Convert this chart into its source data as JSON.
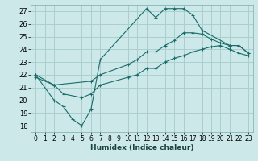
{
  "xlabel": "Humidex (Indice chaleur)",
  "bg_color": "#cce8e8",
  "grid_color": "#aacece",
  "line_color": "#1a6b6b",
  "xlim": [
    -0.5,
    23.5
  ],
  "ylim": [
    17.5,
    27.5
  ],
  "xticks": [
    0,
    1,
    2,
    3,
    4,
    5,
    6,
    7,
    8,
    9,
    10,
    11,
    12,
    13,
    14,
    15,
    16,
    17,
    18,
    19,
    20,
    21,
    22,
    23
  ],
  "yticks": [
    18,
    19,
    20,
    21,
    22,
    23,
    24,
    25,
    26,
    27
  ],
  "series": [
    {
      "x": [
        0,
        2,
        3,
        4,
        5,
        6,
        7,
        12,
        13,
        14,
        15,
        16,
        17,
        18,
        21,
        22,
        23
      ],
      "y": [
        22,
        20,
        19.5,
        18.5,
        18,
        19.3,
        23.2,
        27.2,
        26.5,
        27.2,
        27.2,
        27.2,
        26.7,
        25.5,
        24.3,
        24.3,
        23.7
      ]
    },
    {
      "x": [
        0,
        2,
        6,
        7,
        10,
        11,
        12,
        13,
        14,
        15,
        16,
        17,
        18,
        19,
        20,
        21,
        22,
        23
      ],
      "y": [
        22,
        21.2,
        21.5,
        22.0,
        22.8,
        23.2,
        23.8,
        23.8,
        24.3,
        24.7,
        25.3,
        25.3,
        25.2,
        24.8,
        24.5,
        24.3,
        24.3,
        23.7
      ]
    },
    {
      "x": [
        0,
        2,
        3,
        5,
        6,
        7,
        10,
        11,
        12,
        13,
        14,
        15,
        16,
        17,
        18,
        19,
        20,
        21,
        22,
        23
      ],
      "y": [
        21.8,
        21.2,
        20.5,
        20.2,
        20.5,
        21.2,
        21.8,
        22.0,
        22.5,
        22.5,
        23.0,
        23.3,
        23.5,
        23.8,
        24.0,
        24.2,
        24.3,
        24.0,
        23.7,
        23.5
      ]
    }
  ]
}
